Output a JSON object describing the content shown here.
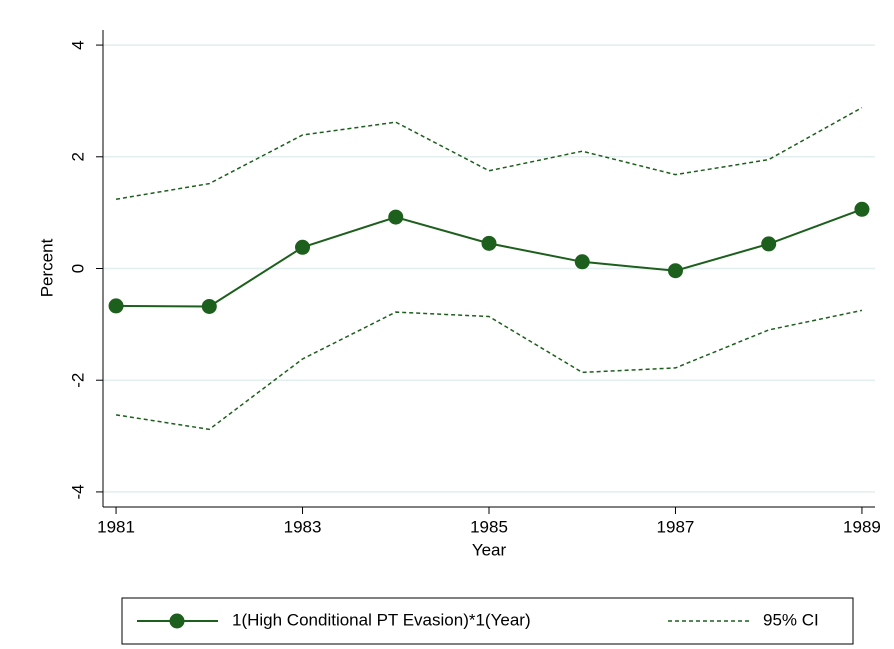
{
  "chart_data": {
    "type": "line",
    "x_label": "Year",
    "y_label": "Percent",
    "x": [
      1981,
      1982,
      1983,
      1984,
      1985,
      1986,
      1987,
      1988,
      1989
    ],
    "series": [
      {
        "name": "1(High Conditional PT Evasion)*1(Year)",
        "color": "#1d5f1d",
        "values": [
          -0.67,
          -0.68,
          0.38,
          0.92,
          0.45,
          0.12,
          -0.04,
          0.44,
          1.06
        ]
      }
    ],
    "ci": {
      "name": "95% CI",
      "color": "#1d5f1d",
      "upper": [
        1.24,
        1.52,
        2.39,
        2.62,
        1.75,
        2.1,
        1.68,
        1.95,
        2.88
      ],
      "lower": [
        -2.62,
        -2.88,
        -1.62,
        -0.78,
        -0.86,
        -1.86,
        -1.78,
        -1.1,
        -0.75
      ]
    },
    "xlim": [
      1980.86,
      1989.14
    ],
    "ylim": [
      -4.27,
      4.27
    ],
    "xticks": [
      1981,
      1983,
      1985,
      1987,
      1989
    ],
    "yticks": [
      -4,
      -2,
      0,
      2,
      4
    ],
    "grid": true
  }
}
